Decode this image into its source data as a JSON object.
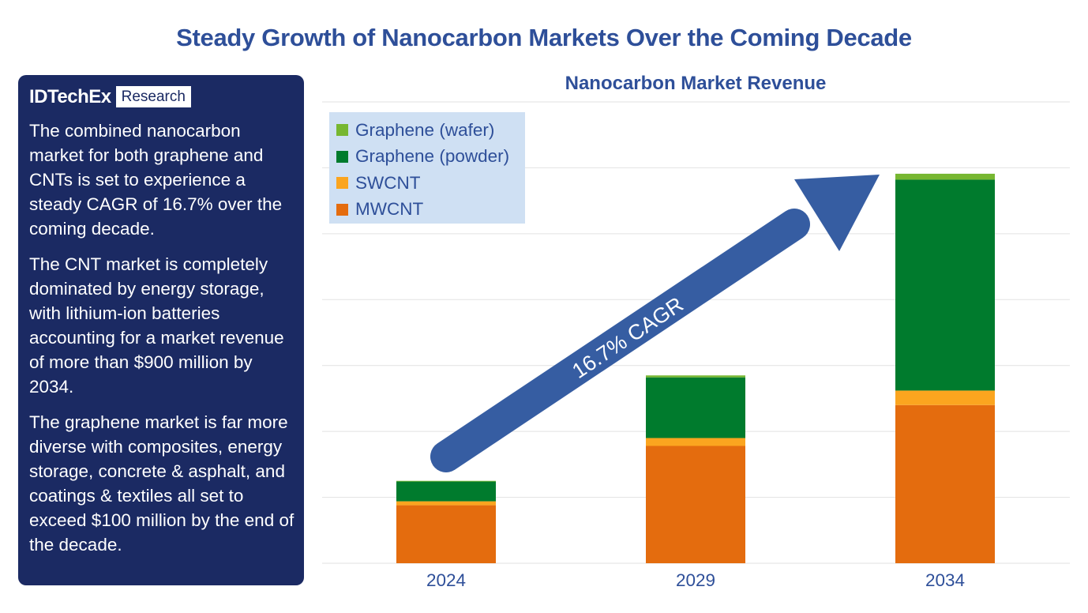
{
  "title": "Steady Growth of Nanocarbon Markets Over the Coming Decade",
  "panel": {
    "logo_brand": "IDTechEx",
    "logo_tag": "Research",
    "paragraphs": [
      "The combined nanocarbon market for both graphene and CNTs is set to experience a steady CAGR of 16.7% over the coming decade.",
      "The CNT market is completely dominated by energy storage, with lithium-ion batteries accounting for a market revenue of more than $900 million by 2034.",
      "The graphene market is far more diverse with composites, energy storage, concrete & asphalt, and coatings & textiles all set to exceed $100 million by the end of the decade."
    ]
  },
  "chart_data": {
    "type": "bar",
    "stacked": true,
    "title": "Nanocarbon Market Revenue",
    "categories": [
      "2024",
      "2029",
      "2034"
    ],
    "series": [
      {
        "name": "MWCNT",
        "color": "#e46c0e",
        "values": [
          88,
          178,
          240
        ]
      },
      {
        "name": "SWCNT",
        "color": "#fba51f",
        "values": [
          6,
          12,
          22
        ]
      },
      {
        "name": "Graphene (powder)",
        "color": "#007b2d",
        "values": [
          30,
          92,
          320
        ]
      },
      {
        "name": "Graphene (wafer)",
        "color": "#77b731",
        "values": [
          1,
          3,
          9
        ]
      }
    ],
    "legend_order": [
      "Graphene (wafer)",
      "Graphene (powder)",
      "SWCNT",
      "MWCNT"
    ],
    "ylim": [
      0,
      700
    ],
    "y_gridlines": [
      0,
      100,
      200,
      300,
      400,
      500,
      600,
      700
    ],
    "ylabel": "",
    "xlabel": "",
    "grid": true,
    "legend_position": "top-left",
    "annotation": {
      "text": "16.7% CAGR",
      "from_category": "2024",
      "to_category": "2034",
      "color": "#365da2"
    }
  }
}
